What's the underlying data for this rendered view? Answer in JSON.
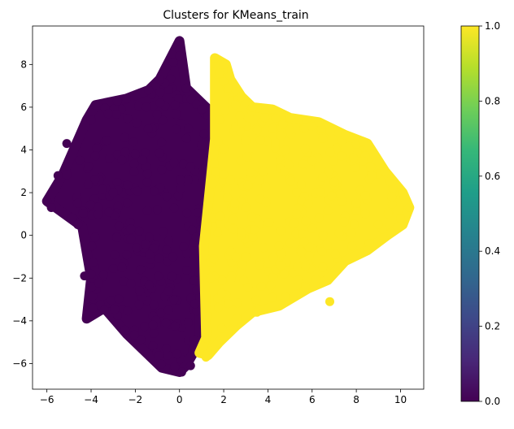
{
  "chart_data": {
    "type": "scatter",
    "title": "Clusters for KMeans_train",
    "xlabel": "",
    "ylabel": "",
    "xlim": [
      -6.65,
      11.05
    ],
    "ylim": [
      -7.2,
      9.8
    ],
    "x_ticks": [
      -6,
      -4,
      -2,
      0,
      2,
      4,
      6,
      8,
      10
    ],
    "y_ticks": [
      -6,
      -4,
      -2,
      0,
      2,
      4,
      6,
      8
    ],
    "grid": false,
    "colormap": "viridis",
    "colorbar": {
      "min": 0.0,
      "max": 1.0,
      "ticks": [
        "0.0",
        "0.2",
        "0.4",
        "0.6",
        "0.8",
        "1.0"
      ]
    },
    "clusters": [
      {
        "label": 0,
        "color": "#440154",
        "x_range": [
          -6.0,
          1.6
        ],
        "y_range": [
          -6.4,
          9.1
        ],
        "outline": [
          [
            -6.0,
            1.6
          ],
          [
            -5.3,
            2.8
          ],
          [
            -4.2,
            5.4
          ],
          [
            -3.8,
            6.1
          ],
          [
            -2.4,
            6.4
          ],
          [
            -1.4,
            6.8
          ],
          [
            -0.9,
            7.3
          ],
          [
            0.0,
            9.1
          ],
          [
            0.3,
            6.9
          ],
          [
            1.3,
            5.9
          ],
          [
            1.6,
            5.6
          ],
          [
            1.6,
            4.5
          ],
          [
            1.3,
            2.5
          ],
          [
            1.1,
            -0.5
          ],
          [
            0.9,
            -3.5
          ],
          [
            0.9,
            -5.0
          ],
          [
            0.3,
            -6.1
          ],
          [
            0.0,
            -6.4
          ],
          [
            -0.8,
            -6.2
          ],
          [
            -1.5,
            -5.5
          ],
          [
            -2.4,
            -4.6
          ],
          [
            -3.4,
            -3.4
          ],
          [
            -4.2,
            -3.9
          ],
          [
            -4.0,
            -2.0
          ],
          [
            -4.4,
            0.4
          ],
          [
            -5.2,
            1.0
          ]
        ],
        "sample": [
          [
            -6.0,
            1.6
          ],
          [
            -5.8,
            1.3
          ],
          [
            -5.5,
            2.8
          ],
          [
            -5.1,
            4.3
          ],
          [
            -4.6,
            0.5
          ],
          [
            -4.3,
            -1.9
          ],
          [
            -4.2,
            -3.9
          ],
          [
            -4.0,
            5.4
          ],
          [
            -3.8,
            6.1
          ],
          [
            -3.4,
            -3.5
          ],
          [
            -3.0,
            2.0
          ],
          [
            -2.6,
            -1.5
          ],
          [
            -2.4,
            6.4
          ],
          [
            -2.2,
            0.3
          ],
          [
            -2.0,
            3.8
          ],
          [
            -1.8,
            -2.6
          ],
          [
            -1.5,
            6.0
          ],
          [
            -1.4,
            6.8
          ],
          [
            -1.2,
            -4.2
          ],
          [
            -1.0,
            1.2
          ],
          [
            -0.9,
            7.3
          ],
          [
            -0.6,
            -5.3
          ],
          [
            -0.3,
            -1.0
          ],
          [
            -0.2,
            6.1
          ],
          [
            0.0,
            9.1
          ],
          [
            0.0,
            8.7
          ],
          [
            0.0,
            8.4
          ],
          [
            0.1,
            -6.4
          ],
          [
            0.3,
            6.9
          ],
          [
            0.5,
            3.2
          ],
          [
            0.5,
            -6.1
          ],
          [
            0.7,
            -3.2
          ],
          [
            1.0,
            5.9
          ],
          [
            1.1,
            0.2
          ],
          [
            1.3,
            5.6
          ],
          [
            1.6,
            5.6
          ],
          [
            1.5,
            4.2
          ],
          [
            1.3,
            2.5
          ]
        ]
      },
      {
        "label": 1,
        "color": "#fde725",
        "x_range": [
          0.9,
          10.4
        ],
        "y_range": [
          -5.8,
          8.3
        ],
        "outline": [
          [
            0.9,
            -5.5
          ],
          [
            1.2,
            -4.8
          ],
          [
            1.1,
            -0.5
          ],
          [
            1.4,
            2.5
          ],
          [
            1.6,
            4.5
          ],
          [
            1.6,
            6.0
          ],
          [
            1.6,
            8.3
          ],
          [
            2.1,
            8.0
          ],
          [
            2.3,
            7.3
          ],
          [
            2.8,
            6.5
          ],
          [
            3.3,
            6.0
          ],
          [
            4.2,
            5.9
          ],
          [
            5.0,
            5.5
          ],
          [
            6.3,
            5.3
          ],
          [
            7.5,
            4.7
          ],
          [
            8.5,
            4.3
          ],
          [
            9.3,
            3.0
          ],
          [
            10.1,
            2.0
          ],
          [
            10.4,
            1.3
          ],
          [
            10.1,
            0.5
          ],
          [
            9.4,
            0.0
          ],
          [
            8.5,
            -0.7
          ],
          [
            7.5,
            -1.2
          ],
          [
            6.7,
            -2.1
          ],
          [
            5.8,
            -2.5
          ],
          [
            4.5,
            -3.3
          ],
          [
            3.3,
            -3.6
          ],
          [
            2.6,
            -4.2
          ],
          [
            1.8,
            -5.0
          ],
          [
            1.3,
            -5.6
          ]
        ],
        "sample": [
          [
            0.9,
            -5.5
          ],
          [
            1.2,
            -4.8
          ],
          [
            1.2,
            -5.7
          ],
          [
            1.4,
            -2.0
          ],
          [
            1.6,
            8.3
          ],
          [
            1.8,
            7.6
          ],
          [
            2.0,
            8.0
          ],
          [
            2.2,
            6.9
          ],
          [
            2.5,
            1.5
          ],
          [
            2.8,
            6.5
          ],
          [
            3.0,
            -1.0
          ],
          [
            3.3,
            6.0
          ],
          [
            3.5,
            -3.6
          ],
          [
            3.8,
            3.0
          ],
          [
            4.2,
            5.9
          ],
          [
            4.5,
            -0.5
          ],
          [
            4.8,
            4.0
          ],
          [
            5.0,
            5.5
          ],
          [
            5.3,
            1.0
          ],
          [
            5.7,
            -2.4
          ],
          [
            6.0,
            3.5
          ],
          [
            6.3,
            5.3
          ],
          [
            6.5,
            0.0
          ],
          [
            6.8,
            -3.1
          ],
          [
            7.0,
            2.5
          ],
          [
            7.5,
            4.7
          ],
          [
            7.8,
            -0.5
          ],
          [
            8.0,
            1.5
          ],
          [
            8.3,
            4.4
          ],
          [
            8.5,
            -0.7
          ],
          [
            8.7,
            2.8
          ],
          [
            9.0,
            0.5
          ],
          [
            9.3,
            3.0
          ],
          [
            9.6,
            1.8
          ],
          [
            10.0,
            0.8
          ],
          [
            10.1,
            2.0
          ],
          [
            10.4,
            1.3
          ]
        ]
      }
    ]
  }
}
